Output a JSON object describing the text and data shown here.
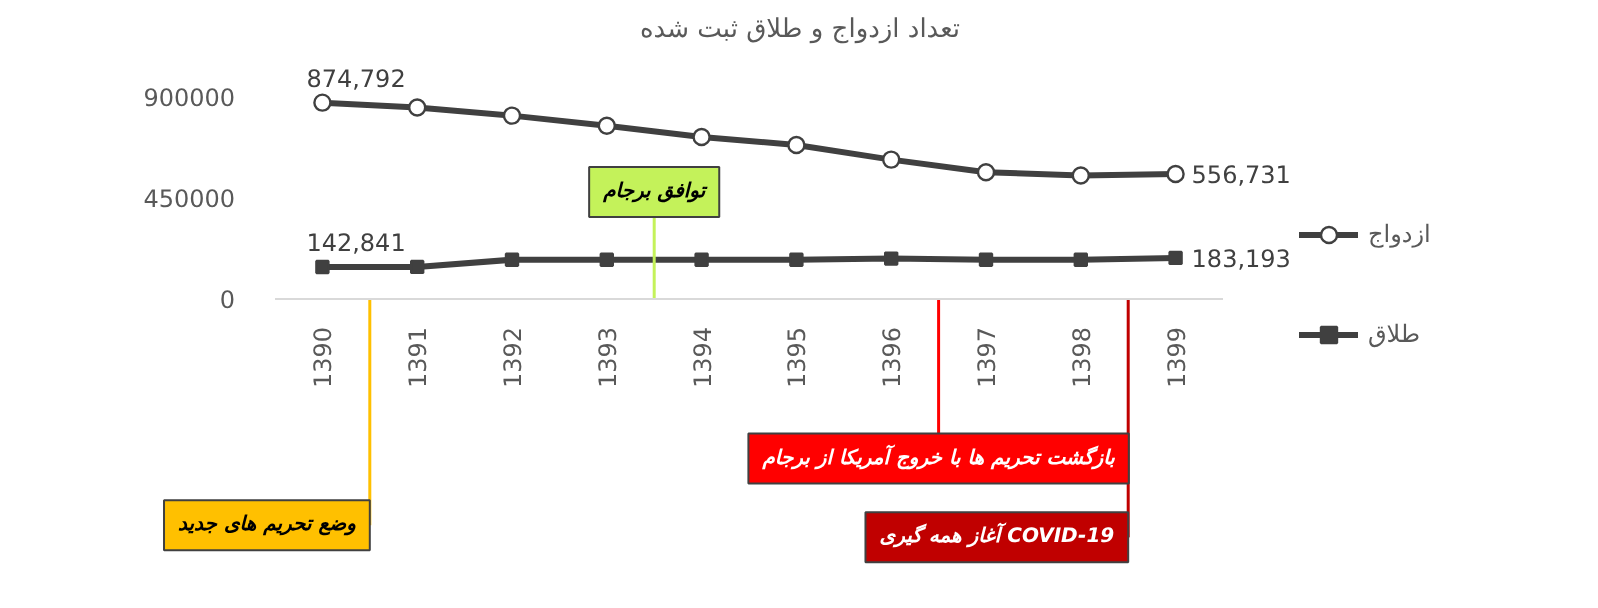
{
  "chart_data": {
    "type": "line",
    "title": "تعداد ازدواج و طلاق ثبت شده",
    "x": [
      1390,
      1391,
      1392,
      1393,
      1394,
      1395,
      1396,
      1397,
      1398,
      1399
    ],
    "xlim": [
      1389.5,
      1399.5
    ],
    "xticks": [
      1390,
      1391,
      1392,
      1393,
      1394,
      1395,
      1396,
      1397,
      1398,
      1399
    ],
    "ylim": [
      0,
      900000
    ],
    "yticks": [
      0,
      450000,
      900000
    ],
    "series": [
      {
        "name": "ازدواج",
        "color": "#404040",
        "marker": "circle",
        "values": [
          874792,
          853000,
          817000,
          772000,
          722000,
          686000,
          621000,
          565000,
          550000,
          556731
        ],
        "value_labels": [
          "874,792",
          null,
          null,
          null,
          null,
          null,
          null,
          null,
          null,
          "556,731"
        ]
      },
      {
        "name": "طلاق",
        "color": "#404040",
        "marker": "square",
        "values": [
          142841,
          143000,
          175000,
          175000,
          175000,
          175000,
          180000,
          175000,
          175000,
          183193
        ],
        "value_labels": [
          "142,841",
          null,
          null,
          null,
          null,
          null,
          null,
          null,
          null,
          "183,193"
        ]
      }
    ],
    "ref_lines": [
      {
        "axis": "x",
        "value": 1390.5,
        "label": "وضع تحریم های جدید",
        "color": "#ffc000"
      },
      {
        "axis": "x",
        "value": 1393.5,
        "label": "توافق برجام",
        "color": "#c4f25a"
      },
      {
        "axis": "x",
        "value": 1396.5,
        "label": "بازگشت تحریم ها با خروج آمریکا از برجام",
        "color": "#ff0000"
      },
      {
        "axis": "x",
        "value": 1398.5,
        "label": "آغاز همه گیری COVID-19",
        "color": "#c00000"
      }
    ],
    "grid": false,
    "legend": "right",
    "line_style": "solid"
  }
}
